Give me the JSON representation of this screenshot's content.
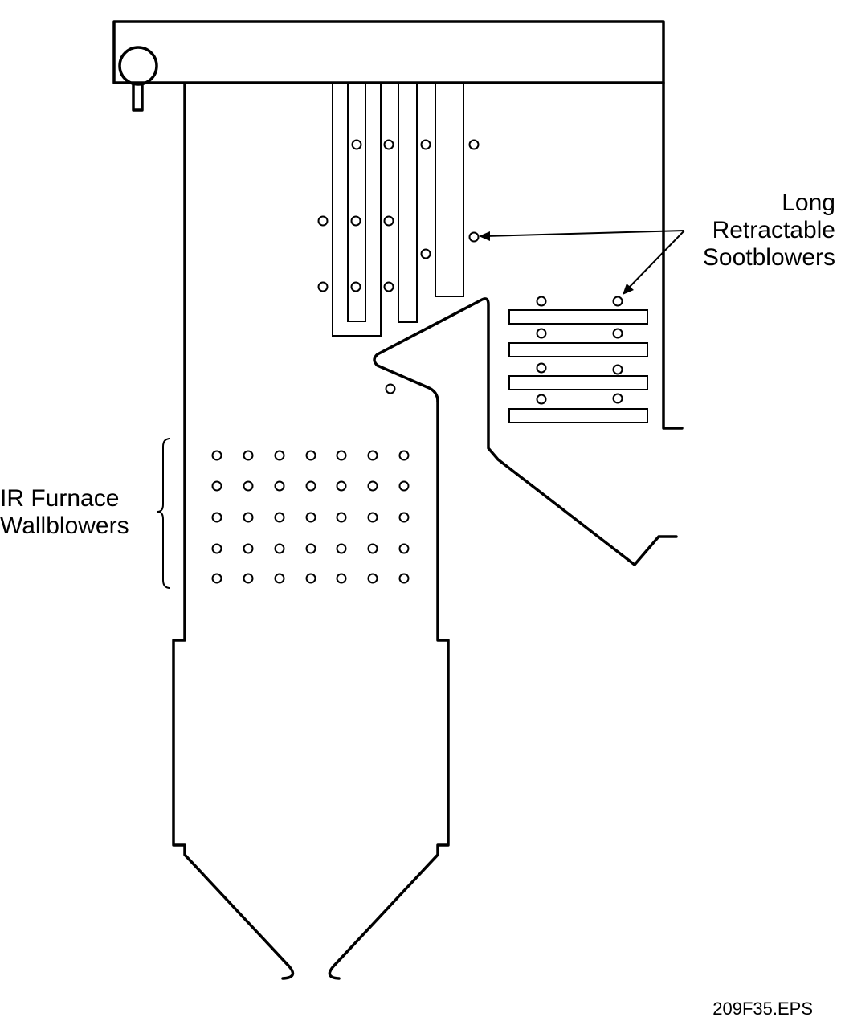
{
  "labels": {
    "long_retractable": [
      "Long",
      "Retractable",
      "Sootblowers"
    ],
    "ir_furnace": [
      "IR Furnace",
      "Wallblowers"
    ]
  },
  "figure_id": "209F35.EPS"
}
